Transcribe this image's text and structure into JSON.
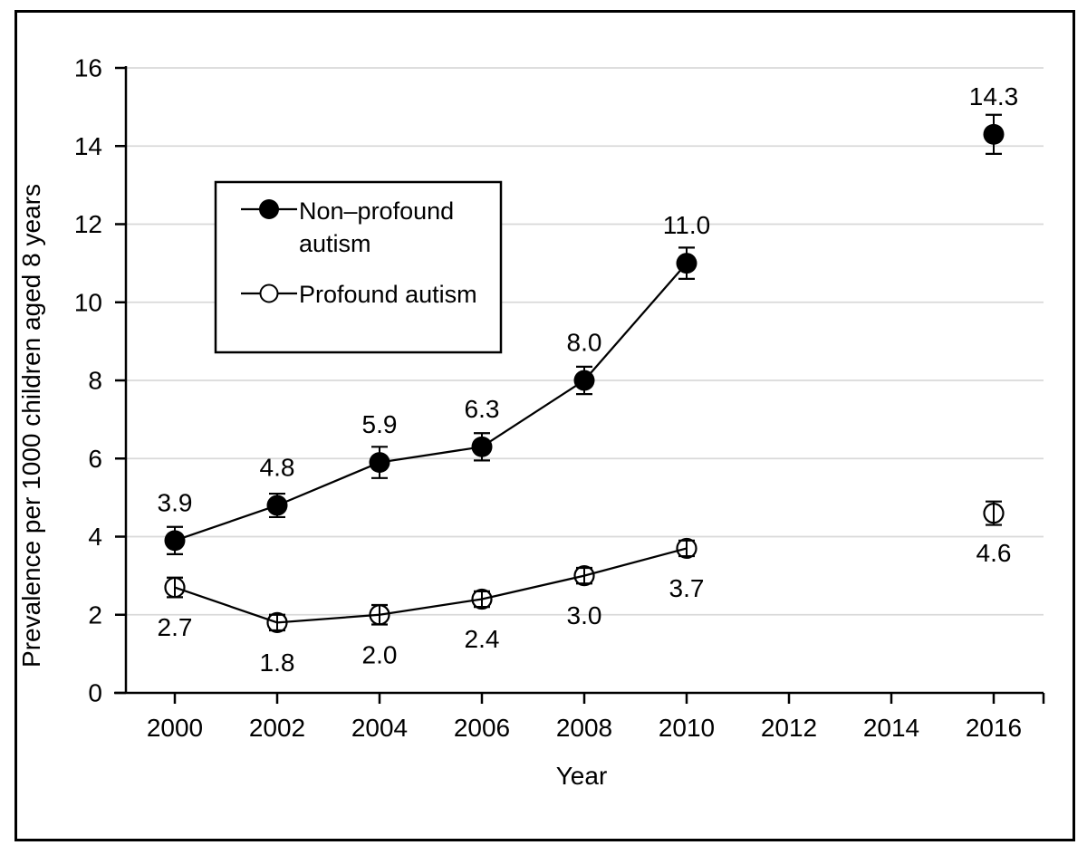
{
  "chart_data": {
    "type": "line",
    "title": "",
    "xlabel": "Year",
    "ylabel": "Prevalence per 1000 children aged 8 years",
    "x_ticks": [
      2000,
      2002,
      2004,
      2006,
      2008,
      2010,
      2012,
      2014,
      2016
    ],
    "y_ticks": [
      0,
      2,
      4,
      6,
      8,
      10,
      12,
      14,
      16
    ],
    "ylim": [
      0,
      16
    ],
    "xlim": [
      1999,
      2017
    ],
    "grid": "horizontal-only",
    "gridline_color": "#d9d9d9",
    "axis_color": "#000000",
    "series": [
      {
        "name": "Non–profound autism",
        "marker": "filled-circle",
        "label_position": "above",
        "line_end_index": 5,
        "x": [
          2000,
          2002,
          2004,
          2006,
          2008,
          2010,
          2016
        ],
        "values": [
          3.9,
          4.8,
          5.9,
          6.3,
          8.0,
          11.0,
          14.3
        ],
        "errors": [
          0.35,
          0.3,
          0.4,
          0.35,
          0.35,
          0.4,
          0.5
        ],
        "labels": [
          "3.9",
          "4.8",
          "5.9",
          "6.3",
          "8.0",
          "11.0",
          "14.3"
        ]
      },
      {
        "name": "Profound autism",
        "marker": "open-circle",
        "label_position": "below",
        "line_end_index": 5,
        "x": [
          2000,
          2002,
          2004,
          2006,
          2008,
          2010,
          2016
        ],
        "values": [
          2.7,
          1.8,
          2.0,
          2.4,
          3.0,
          3.7,
          4.6
        ],
        "errors": [
          0.25,
          0.2,
          0.25,
          0.2,
          0.2,
          0.2,
          0.3
        ],
        "labels": [
          "2.7",
          "1.8",
          "2.0",
          "2.4",
          "3.0",
          "3.7",
          "4.6"
        ]
      }
    ],
    "legend": {
      "position": "upper-left-inside",
      "entries": [
        {
          "label": "Non–profound autism",
          "lines": [
            "Non–profound",
            "autism"
          ],
          "marker": "filled-circle"
        },
        {
          "label": "Profound autism",
          "lines": [
            "Profound autism"
          ],
          "marker": "open-circle"
        }
      ]
    }
  }
}
